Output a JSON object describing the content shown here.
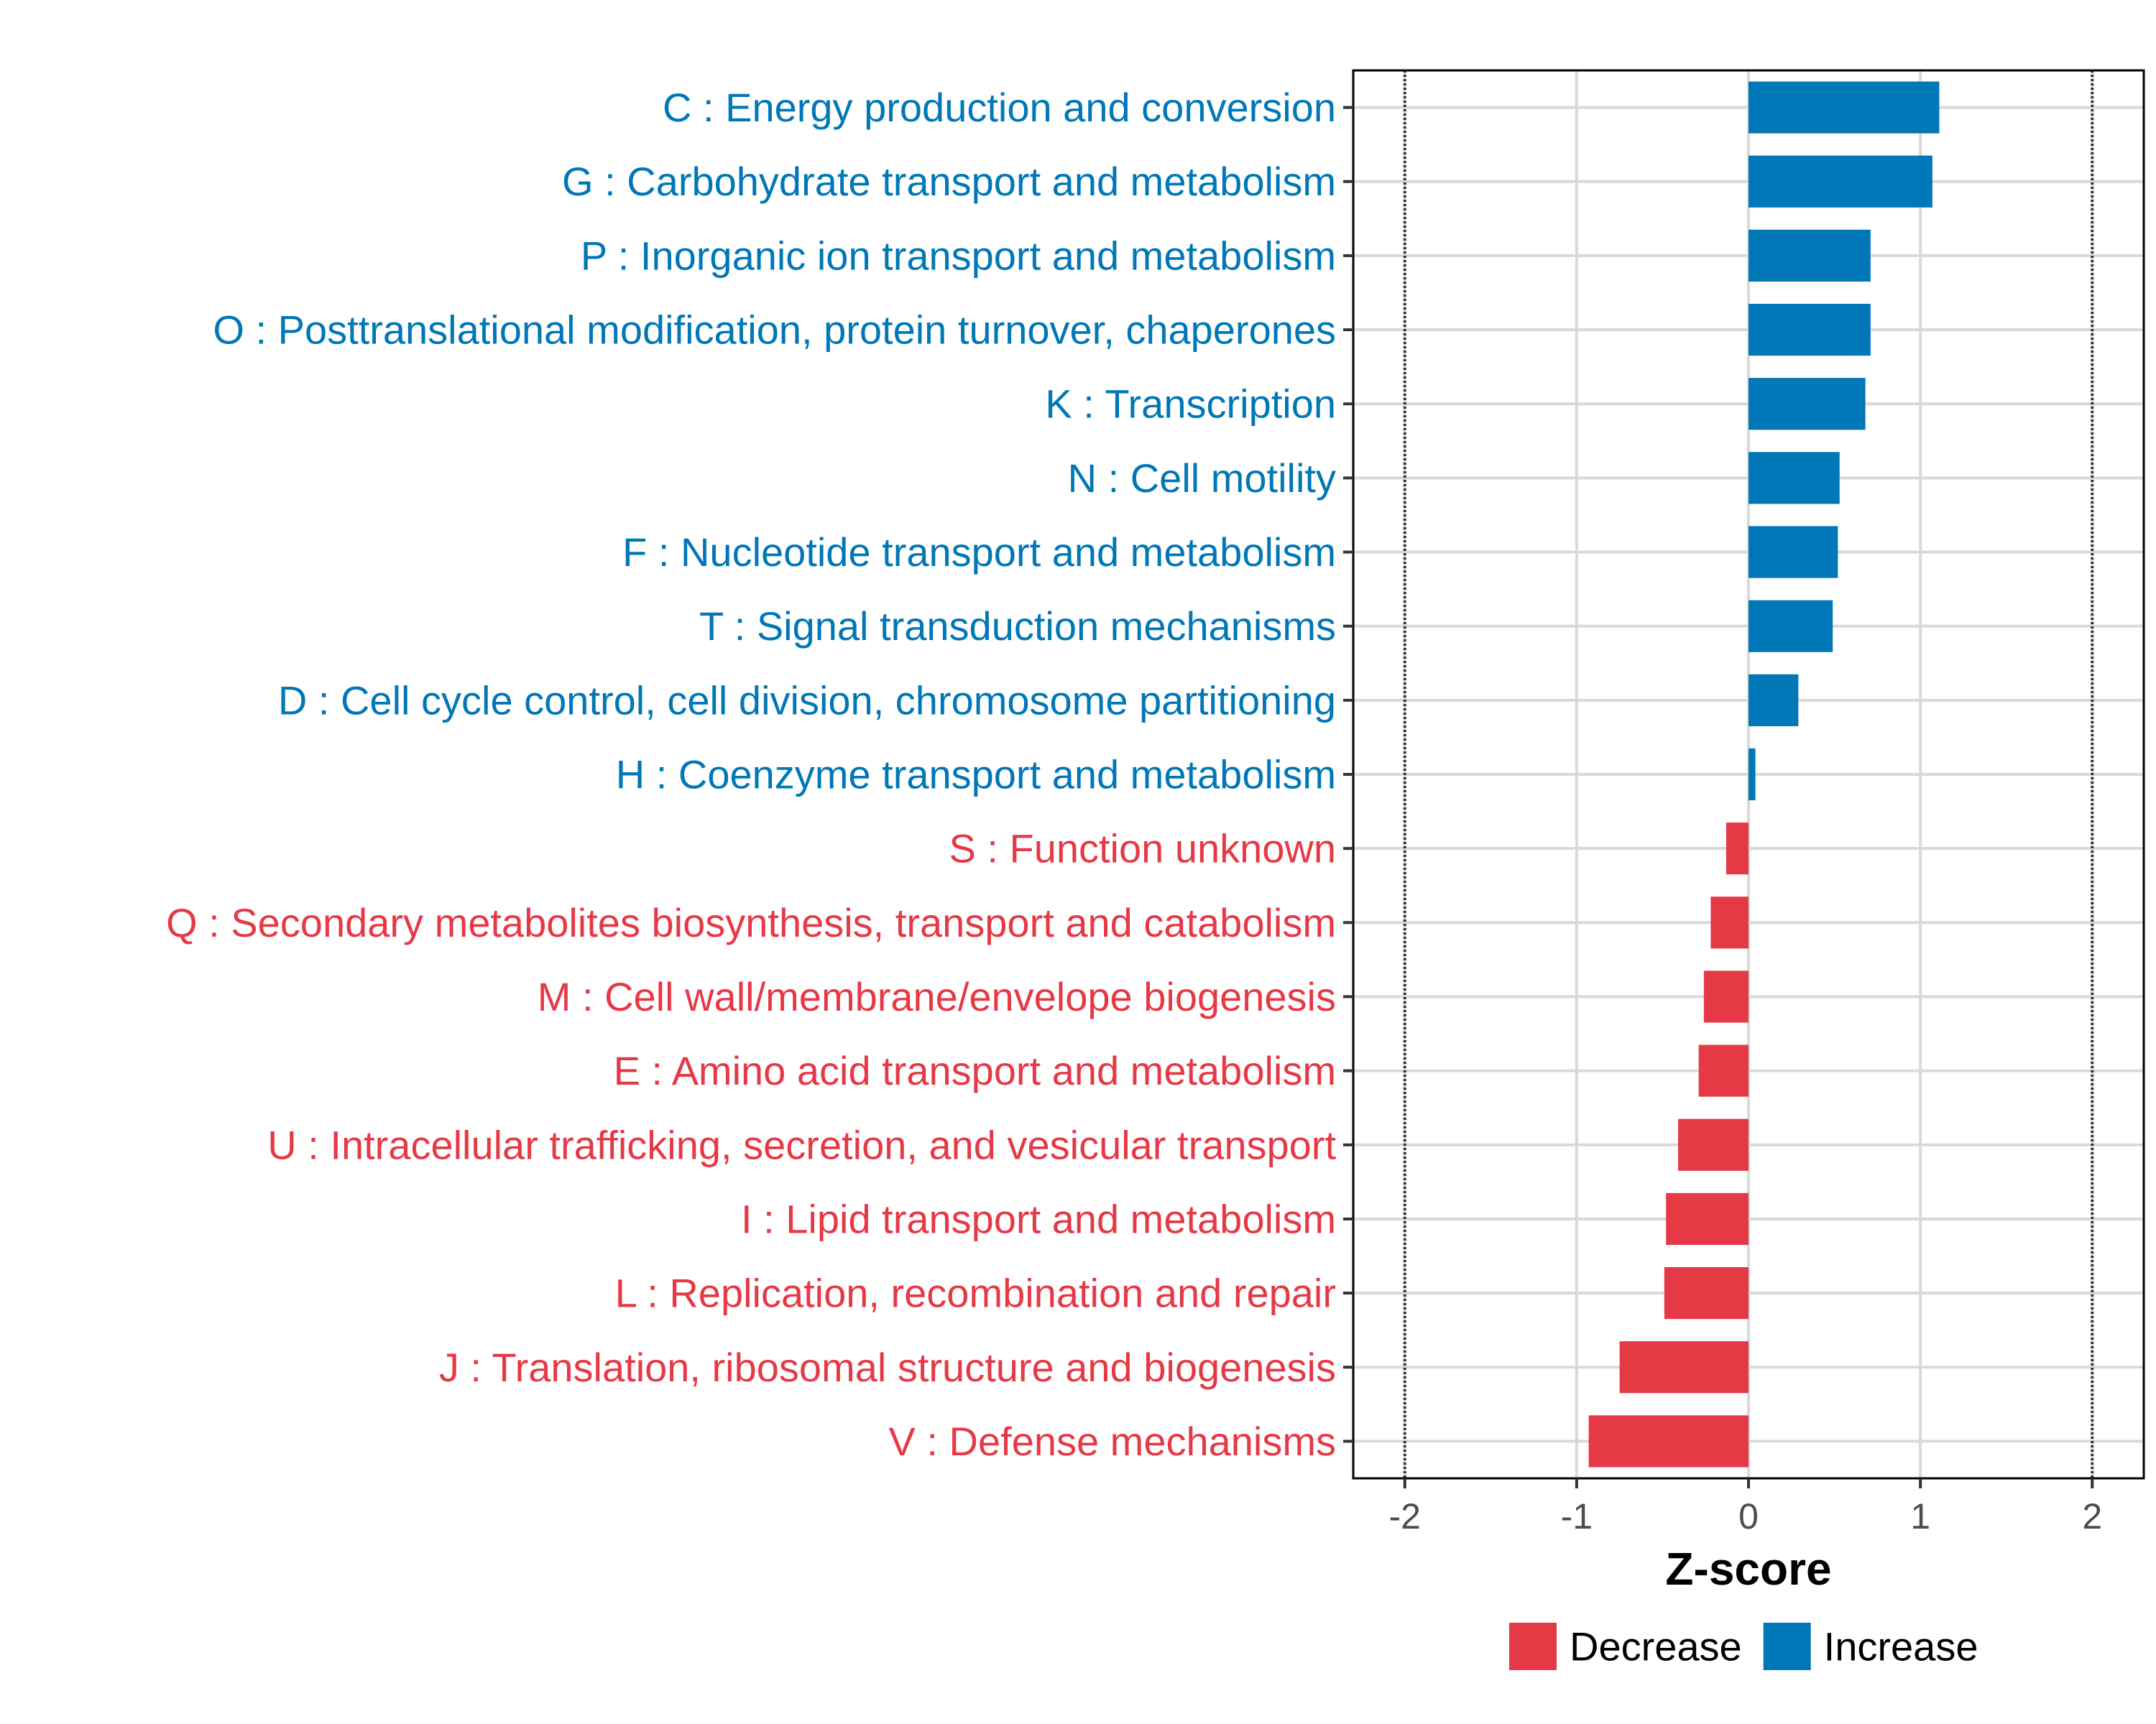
{
  "chart_data": {
    "type": "bar",
    "orientation": "horizontal",
    "title": "",
    "xlabel": "Z-score",
    "ylabel": "",
    "xlim": [
      -2.3,
      2.3
    ],
    "xticks": [
      -2,
      -1,
      0,
      1,
      2
    ],
    "xtick_labels": [
      "-2",
      "-1",
      "0",
      "1",
      "2"
    ],
    "reference_lines": [
      -2,
      2
    ],
    "grid": true,
    "legend_position": "bottom",
    "colors": {
      "Decrease": "#e63946",
      "Increase": "#0077b6"
    },
    "categories": [
      "C : Energy production and conversion",
      "G : Carbohydrate transport and metabolism",
      "P : Inorganic ion transport and metabolism",
      "O : Posttranslational modification, protein turnover, chaperones",
      "K : Transcription",
      "N : Cell motility",
      "F : Nucleotide transport and metabolism",
      "T : Signal transduction mechanisms",
      "D : Cell cycle control, cell division, chromosome partitioning",
      "H : Coenzyme transport and metabolism",
      "S : Function unknown",
      "Q : Secondary metabolites biosynthesis, transport and catabolism",
      "M : Cell wall/membrane/envelope biogenesis",
      "E : Amino acid transport and metabolism",
      "U : Intracellular trafficking, secretion, and vesicular transport",
      "I : Lipid transport and metabolism",
      "L : Replication, recombination and repair",
      "J : Translation, ribosomal structure and biogenesis",
      "V : Defense mechanisms"
    ],
    "values": [
      1.11,
      1.07,
      0.71,
      0.71,
      0.68,
      0.53,
      0.52,
      0.49,
      0.29,
      0.04,
      -0.13,
      -0.22,
      -0.26,
      -0.29,
      -0.41,
      -0.48,
      -0.49,
      -0.75,
      -0.93
    ],
    "groups": [
      "Increase",
      "Increase",
      "Increase",
      "Increase",
      "Increase",
      "Increase",
      "Increase",
      "Increase",
      "Increase",
      "Increase",
      "Decrease",
      "Decrease",
      "Decrease",
      "Decrease",
      "Decrease",
      "Decrease",
      "Decrease",
      "Decrease",
      "Decrease"
    ],
    "legend": [
      "Decrease",
      "Increase"
    ]
  }
}
